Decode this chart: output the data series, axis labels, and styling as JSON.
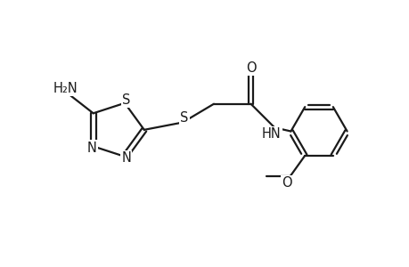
{
  "background_color": "#ffffff",
  "line_color": "#1a1a1a",
  "line_width": 1.6,
  "font_size": 10.5,
  "figsize": [
    4.6,
    3.0
  ],
  "dpi": 100,
  "xlim": [
    0.0,
    5.5
  ],
  "ylim": [
    0.5,
    3.2
  ]
}
